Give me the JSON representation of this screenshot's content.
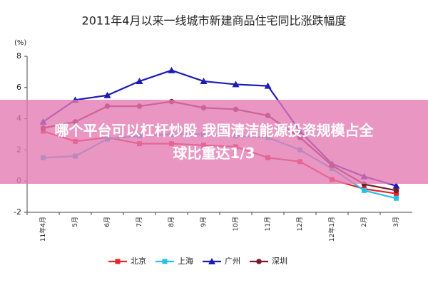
{
  "chart_data": {
    "type": "line",
    "title": "2011年4月以来一线城市新建商品住宅同比涨跌幅度",
    "y_unit": "(%)",
    "categories": [
      "11年4月",
      "5月",
      "6月",
      "7月",
      "8月",
      "9月",
      "10月",
      "11月",
      "12月",
      "12年1月",
      "2月",
      "3月"
    ],
    "ylim": [
      -2,
      8
    ],
    "yticks": [
      -2,
      0,
      2,
      4,
      6,
      8
    ],
    "grid": false,
    "legend": "bottom",
    "series": [
      {
        "name": "北京",
        "color": "#e8252b",
        "marker": "square",
        "values": [
          3.2,
          2.55,
          2.8,
          2.4,
          2.4,
          2.3,
          2.2,
          1.5,
          1.25,
          0.1,
          -0.5,
          -0.8
        ]
      },
      {
        "name": "上海",
        "color": "#27c0e6",
        "marker": "square",
        "values": [
          1.5,
          1.6,
          2.7,
          2.9,
          3.0,
          3.0,
          2.9,
          2.8,
          2.0,
          0.8,
          -0.6,
          -1.1
        ]
      },
      {
        "name": "广州",
        "color": "#1c1cb4",
        "marker": "triangle",
        "values": [
          3.8,
          5.2,
          5.5,
          6.4,
          7.1,
          6.4,
          6.2,
          6.1,
          3.2,
          1.1,
          0.3,
          -0.3
        ]
      },
      {
        "name": "深圳",
        "color": "#7b1a2c",
        "marker": "circle",
        "values": [
          3.4,
          3.8,
          4.8,
          4.8,
          5.1,
          4.7,
          4.6,
          4.2,
          2.8,
          1.0,
          -0.2,
          -0.6
        ]
      }
    ]
  },
  "overlay": {
    "lines": [
      "哪个平台可以杠杆炒股 我国清洁能源投资规模占全",
      "球比重达1/3"
    ]
  }
}
